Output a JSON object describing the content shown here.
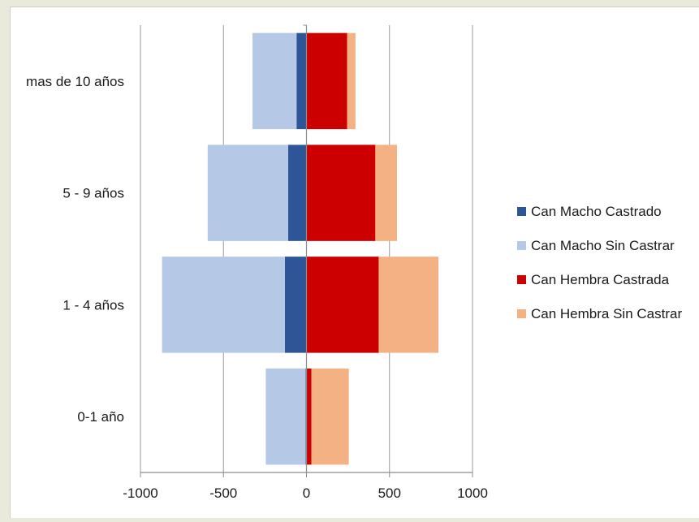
{
  "chart_data": {
    "type": "bar",
    "orientation": "horizontal",
    "stacked": true,
    "title": "",
    "xlabel": "",
    "ylabel": "",
    "categories": [
      "mas de 10 años",
      "5 - 9 años",
      "1 - 4 años",
      "0-1 año"
    ],
    "xlim": [
      -1000,
      1000
    ],
    "xticks": [
      -1000,
      -500,
      0,
      500,
      1000
    ],
    "grid": "vertical",
    "legend_position": "right",
    "series": [
      {
        "name": "Can Macho Castrado",
        "color": "#2e5597",
        "values": [
          -60,
          -110,
          -130,
          -5
        ]
      },
      {
        "name": "Can Macho Sin Castrar",
        "color": "#b5c8e6",
        "values": [
          -265,
          -485,
          -740,
          -240
        ]
      },
      {
        "name": "Can Hembra Castrada",
        "color": "#cc0000",
        "values": [
          245,
          415,
          435,
          30
        ]
      },
      {
        "name": "Can Hembra Sin Castrar",
        "color": "#f4b183",
        "values": [
          50,
          130,
          360,
          225
        ]
      }
    ]
  }
}
